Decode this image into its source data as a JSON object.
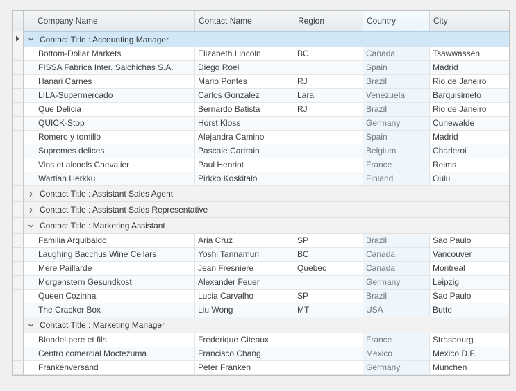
{
  "colors": {
    "page_bg": "#f0f0f0",
    "selected_group_row_bg": "#d2e7f5",
    "selected_group_row_border": "#8fb9d6",
    "group_row_bg": "#f2f2f2",
    "alt_row_bg": "#f7fafd",
    "country_column_bg": "#eef6fc",
    "country_header_bg": "#eff7fd"
  },
  "grid": {
    "columns": [
      {
        "key": "company",
        "label": "Company Name"
      },
      {
        "key": "contact",
        "label": "Contact Name"
      },
      {
        "key": "region",
        "label": "Region"
      },
      {
        "key": "country",
        "label": "Country"
      },
      {
        "key": "city",
        "label": "City"
      }
    ]
  },
  "rows": [
    {
      "type": "group",
      "label": "Contact Title : Accounting Manager",
      "expanded": true,
      "selected": true
    },
    {
      "type": "data",
      "company": "Bottom-Dollar Markets",
      "contact": "Elizabeth Lincoln",
      "region": "BC",
      "country": "Canada",
      "city": "Tsawwassen"
    },
    {
      "type": "data",
      "company": "FISSA Fabrica Inter. Salchichas S.A.",
      "contact": "Diego Roel",
      "region": "",
      "country": "Spain",
      "city": "Madrid"
    },
    {
      "type": "data",
      "company": "Hanari Carnes",
      "contact": "Mario Pontes",
      "region": "RJ",
      "country": "Brazil",
      "city": "Rio de Janeiro"
    },
    {
      "type": "data",
      "company": "LILA-Supermercado",
      "contact": "Carlos Gonzalez",
      "region": "Lara",
      "country": "Venezuela",
      "city": "Barquisimeto"
    },
    {
      "type": "data",
      "company": "Que Delicia",
      "contact": "Bernardo Batista",
      "region": "RJ",
      "country": "Brazil",
      "city": "Rio de Janeiro"
    },
    {
      "type": "data",
      "company": "QUICK-Stop",
      "contact": "Horst Kloss",
      "region": "",
      "country": "Germany",
      "city": "Cunewalde"
    },
    {
      "type": "data",
      "company": "Romero y tomillo",
      "contact": "Alejandra Camino",
      "region": "",
      "country": "Spain",
      "city": "Madrid"
    },
    {
      "type": "data",
      "company": "Supremes delices",
      "contact": "Pascale Cartrain",
      "region": "",
      "country": "Belgium",
      "city": "Charleroi"
    },
    {
      "type": "data",
      "company": "Vins et alcools Chevalier",
      "contact": "Paul Henriot",
      "region": "",
      "country": "France",
      "city": "Reims"
    },
    {
      "type": "data",
      "company": "Wartian Herkku",
      "contact": "Pirkko Koskitalo",
      "region": "",
      "country": "Finland",
      "city": "Oulu"
    },
    {
      "type": "group",
      "label": "Contact Title : Assistant Sales Agent",
      "expanded": false,
      "selected": false
    },
    {
      "type": "group",
      "label": "Contact Title : Assistant Sales Representative",
      "expanded": false,
      "selected": false
    },
    {
      "type": "group",
      "label": "Contact Title : Marketing Assistant",
      "expanded": true,
      "selected": false
    },
    {
      "type": "data",
      "company": "Familia Arquibaldo",
      "contact": "Aria Cruz",
      "region": "SP",
      "country": "Brazil",
      "city": "Sao Paulo"
    },
    {
      "type": "data",
      "company": "Laughing Bacchus Wine Cellars",
      "contact": "Yoshi Tannamuri",
      "region": "BC",
      "country": "Canada",
      "city": "Vancouver"
    },
    {
      "type": "data",
      "company": "Mere Paillarde",
      "contact": "Jean Fresniere",
      "region": "Quebec",
      "country": "Canada",
      "city": "Montreal"
    },
    {
      "type": "data",
      "company": "Morgenstern Gesundkost",
      "contact": "Alexander Feuer",
      "region": "",
      "country": "Germany",
      "city": "Leipzig"
    },
    {
      "type": "data",
      "company": "Queen Cozinha",
      "contact": "Lucia Carvalho",
      "region": "SP",
      "country": "Brazil",
      "city": "Sao Paulo"
    },
    {
      "type": "data",
      "company": "The Cracker Box",
      "contact": "Liu Wong",
      "region": "MT",
      "country": "USA",
      "city": "Butte"
    },
    {
      "type": "group",
      "label": "Contact Title : Marketing Manager",
      "expanded": true,
      "selected": false
    },
    {
      "type": "data",
      "company": "Blondel pere et fils",
      "contact": "Frederique Citeaux",
      "region": "",
      "country": "France",
      "city": "Strasbourg"
    },
    {
      "type": "data",
      "company": "Centro comercial Moctezuma",
      "contact": "Francisco Chang",
      "region": "",
      "country": "Mexico",
      "city": "Mexico D.F."
    },
    {
      "type": "data",
      "company": "Frankenversand",
      "contact": "Peter Franken",
      "region": "",
      "country": "Germany",
      "city": "Munchen"
    }
  ]
}
